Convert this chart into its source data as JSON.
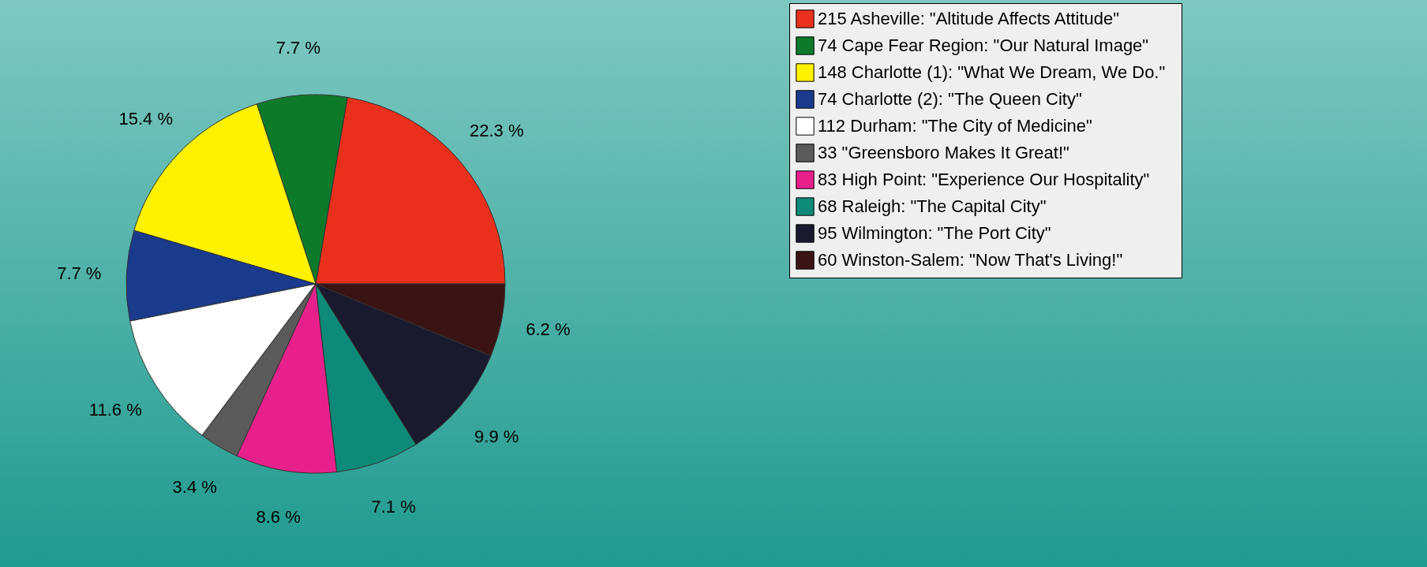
{
  "chart_data": {
    "type": "pie",
    "categories": [
      "215   Asheville: \"Altitude Affects Attitude\"",
      "74   Cape Fear Region: \"Our Natural Image\"",
      "148   Charlotte (1): \"What We Dream, We Do.\"",
      "74   Charlotte (2): \"The Queen City\"",
      "112   Durham: \"The City of Medicine\"",
      "33   \"Greensboro Makes It Great!\"",
      "83   High Point: \"Experience Our Hospitality\"",
      "68   Raleigh: \"The Capital City\"",
      "95   Wilmington: \"The Port City\"",
      "60   Winston-Salem: \"Now That's Living!\""
    ],
    "values": [
      22.3,
      7.7,
      15.4,
      7.7,
      11.6,
      3.4,
      8.6,
      7.1,
      9.9,
      6.2
    ],
    "value_labels": [
      "22.3 %",
      "7.7 %",
      "15.4 %",
      "7.7 %",
      "11.6 %",
      "3.4 %",
      "8.6 %",
      "7.1 %",
      "9.9 %",
      "6.2 %"
    ],
    "colors": [
      "#e8301c",
      "#0d7a2a",
      "#fff200",
      "#1a3a8c",
      "#ffffff",
      "#5a5a5a",
      "#e8208c",
      "#0d8a78",
      "#1a1a2e",
      "#3a1414"
    ],
    "legend": "top right"
  }
}
